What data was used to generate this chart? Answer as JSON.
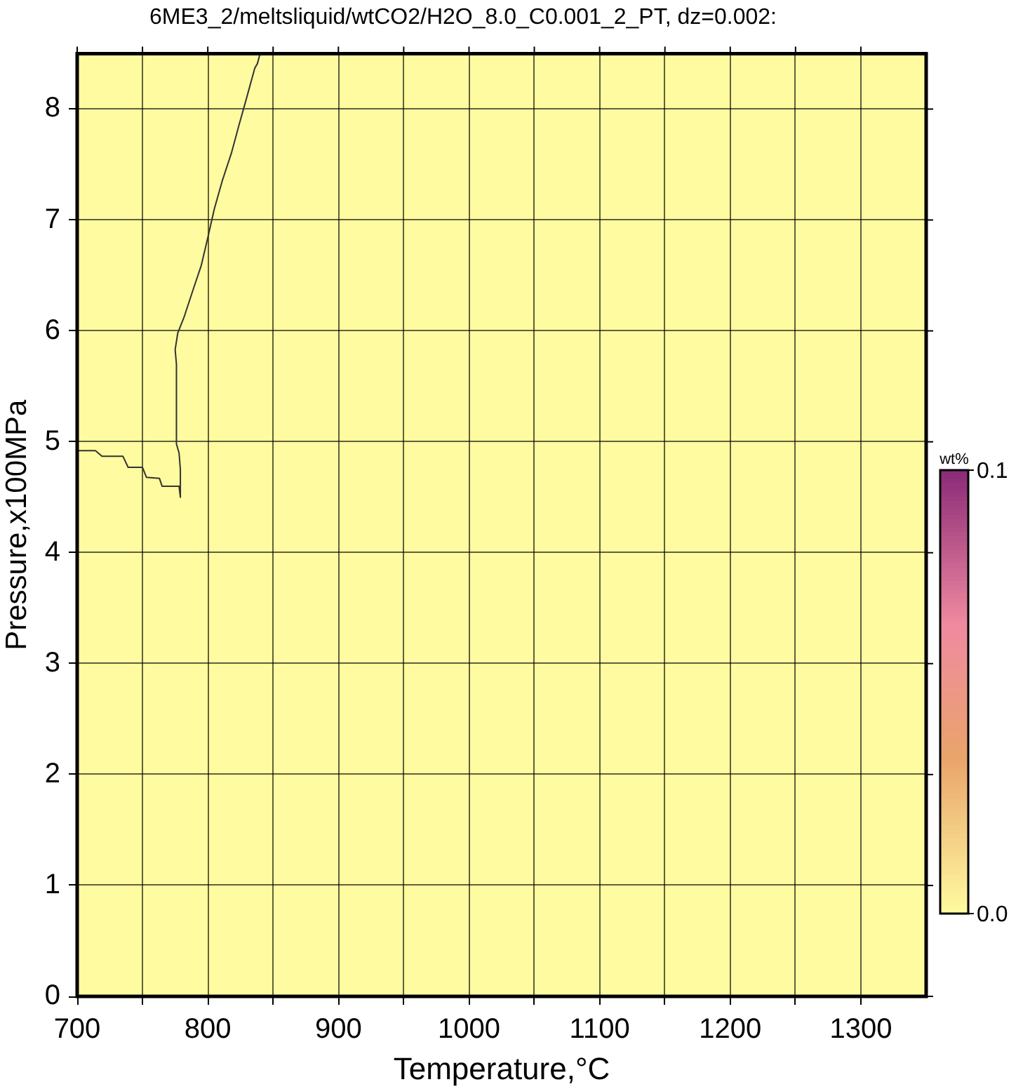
{
  "chart_data": {
    "type": "heatmap",
    "title": "6ME3_2/meltsliquid/wtCO2/H2O_8.0_C0.001_2_PT, dz=0.002:",
    "xlabel": "Temperature,°C",
    "ylabel": "Pressure,x100MPa",
    "clabel": "wt%",
    "xlim": [
      700,
      1350
    ],
    "ylim": [
      0,
      8.5
    ],
    "xticks": [
      700,
      {
        "value": 750,
        "label": null
      },
      800,
      {
        "value": 850,
        "label": null
      },
      900,
      {
        "value": 950,
        "label": null
      },
      1000,
      {
        "value": 1050,
        "label": null
      },
      1100,
      {
        "value": 1150,
        "label": null
      },
      1200,
      {
        "value": 1250,
        "label": null
      },
      1300
    ],
    "yticks": [
      0,
      1,
      2,
      3,
      4,
      5,
      6,
      7,
      8
    ],
    "clim": [
      0,
      0.1
    ],
    "cticks": [
      {
        "value": 0,
        "label": "0.0"
      },
      0.1
    ],
    "cells": [
      [
        0,
        0,
        0,
        0,
        0,
        0,
        0,
        0,
        0,
        0,
        0,
        0,
        0
      ],
      [
        0,
        0,
        0,
        0,
        0,
        0,
        0,
        0,
        0,
        0,
        0,
        0,
        0
      ],
      [
        0,
        0,
        0,
        0,
        0,
        0,
        0,
        0,
        0,
        0,
        0,
        0,
        0
      ],
      [
        0,
        0,
        0,
        0,
        0,
        0,
        0,
        0,
        0,
        0,
        0,
        0,
        0
      ],
      [
        0,
        0,
        0,
        0,
        0,
        0,
        0,
        0,
        0,
        0,
        0,
        0,
        0
      ],
      [
        0,
        0,
        0,
        0,
        0,
        0,
        0,
        0,
        0,
        0,
        0,
        0,
        0
      ],
      [
        0,
        0,
        0,
        0,
        0,
        0,
        0,
        0,
        0,
        0,
        0,
        0,
        0
      ],
      [
        0,
        0,
        0,
        0,
        0,
        0,
        0,
        0,
        0,
        0,
        0,
        0,
        0
      ],
      [
        0,
        0,
        0,
        0,
        0,
        0,
        0,
        0,
        0,
        0,
        0,
        0,
        0
      ],
      [
        0,
        0,
        0,
        0,
        0,
        0,
        0,
        0,
        0,
        0,
        0,
        0,
        0
      ],
      [
        0,
        0,
        0,
        0,
        0,
        0,
        0,
        0,
        0,
        0,
        0,
        0,
        0
      ],
      [
        0,
        0,
        0,
        0,
        0,
        0,
        0,
        0,
        0,
        0,
        0,
        0,
        0
      ],
      [
        0,
        0,
        0,
        0,
        0,
        0,
        0,
        0,
        0,
        0,
        0,
        0,
        0
      ],
      [
        0,
        0,
        0,
        0,
        0,
        0,
        0,
        0,
        0,
        0,
        0,
        0,
        0
      ],
      [
        0,
        0,
        0,
        0,
        0,
        0,
        0,
        0,
        0,
        0,
        0,
        0,
        0
      ],
      [
        0,
        0,
        0,
        0,
        0,
        0,
        0,
        0,
        0,
        0,
        0,
        0,
        0
      ],
      [
        0,
        0,
        0,
        0,
        0,
        0,
        0,
        0,
        0,
        0,
        0,
        0,
        0
      ]
    ],
    "series": [
      {
        "type": "line",
        "color": "#333333",
        "x": [
          700,
          714,
          719,
          735,
          739,
          750,
          753,
          763,
          765,
          778,
          779,
          779,
          778,
          776,
          776,
          775,
          777,
          782,
          789,
          795,
          800,
          805,
          811,
          818,
          824,
          829,
          836,
          838,
          840
        ],
        "values": [
          4.92,
          4.92,
          4.87,
          4.87,
          4.77,
          4.77,
          4.68,
          4.67,
          4.6,
          4.6,
          4.5,
          4.75,
          4.9,
          4.98,
          5.7,
          5.83,
          5.98,
          6.13,
          6.38,
          6.59,
          6.84,
          7.1,
          7.35,
          7.6,
          7.86,
          8.07,
          8.37,
          8.41,
          8.5
        ]
      }
    ],
    "grid": true,
    "marker": "none"
  }
}
